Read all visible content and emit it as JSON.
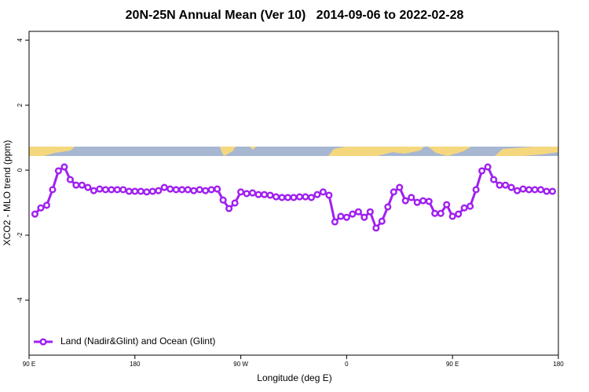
{
  "chart_data": {
    "type": "line",
    "title": "20N-25N Annual Mean (Ver 10)   2014-09-06 to 2022-02-28",
    "x_label": "Longitude (deg E)",
    "y_label": "XCO2 - MLO trend (ppm)",
    "x": [
      95,
      100,
      105,
      110,
      115,
      120,
      125,
      130,
      135,
      140,
      145,
      150,
      155,
      160,
      165,
      170,
      175,
      180,
      185,
      190,
      195,
      200,
      205,
      210,
      215,
      220,
      225,
      230,
      235,
      240,
      245,
      250,
      255,
      260,
      265,
      270,
      275,
      280,
      285,
      290,
      295,
      300,
      305,
      310,
      315,
      320,
      325,
      330,
      335,
      340,
      345,
      350,
      355,
      360,
      365,
      370,
      375,
      380,
      385,
      390,
      395,
      400,
      405,
      410,
      415,
      420,
      425,
      430,
      435,
      440,
      445,
      450,
      455,
      460,
      465,
      470,
      475,
      480,
      485,
      490,
      495,
      500,
      505,
      510,
      515,
      520,
      525,
      530,
      535
    ],
    "series": [
      {
        "name": "Land (Nadir&Glint) and Ocean (Glint)",
        "color": "#a020f0",
        "values": [
          -1.35,
          -1.16,
          -1.08,
          -0.6,
          -0.02,
          0.1,
          -0.29,
          -0.46,
          -0.46,
          -0.53,
          -0.63,
          -0.58,
          -0.6,
          -0.6,
          -0.6,
          -0.6,
          -0.65,
          -0.65,
          -0.65,
          -0.67,
          -0.65,
          -0.63,
          -0.53,
          -0.58,
          -0.6,
          -0.6,
          -0.6,
          -0.63,
          -0.6,
          -0.63,
          -0.6,
          -0.58,
          -0.92,
          -1.18,
          -1.01,
          -0.67,
          -0.72,
          -0.7,
          -0.75,
          -0.75,
          -0.77,
          -0.82,
          -0.84,
          -0.84,
          -0.84,
          -0.82,
          -0.82,
          -0.84,
          -0.75,
          -0.67,
          -0.77,
          -1.59,
          -1.42,
          -1.45,
          -1.35,
          -1.28,
          -1.45,
          -1.28,
          -1.78,
          -1.57,
          -1.13,
          -0.67,
          -0.53,
          -0.94,
          -0.84,
          -0.99,
          -0.94,
          -0.96,
          -1.33,
          -1.33,
          -1.06,
          -1.42,
          -1.35,
          -1.16,
          -1.11,
          -0.6,
          -0.02,
          0.1,
          -0.29,
          -0.46,
          -0.46,
          -0.53,
          -0.63,
          -0.58,
          -0.6,
          -0.6,
          -0.6,
          -0.65,
          -0.65
        ]
      }
    ],
    "xlim": [
      90,
      540
    ],
    "xticks": [
      {
        "value": 90,
        "label": "90 E"
      },
      180,
      {
        "value": 270,
        "label": "90 W"
      },
      {
        "value": 360,
        "label": "0"
      },
      {
        "value": 450,
        "label": "90 E"
      },
      {
        "value": 540,
        "label": "180"
      }
    ],
    "ylim": [
      -5.69,
      4.27
    ],
    "yticks": [
      -4,
      -2,
      0,
      2,
      4
    ],
    "legend": "bottom-left"
  }
}
